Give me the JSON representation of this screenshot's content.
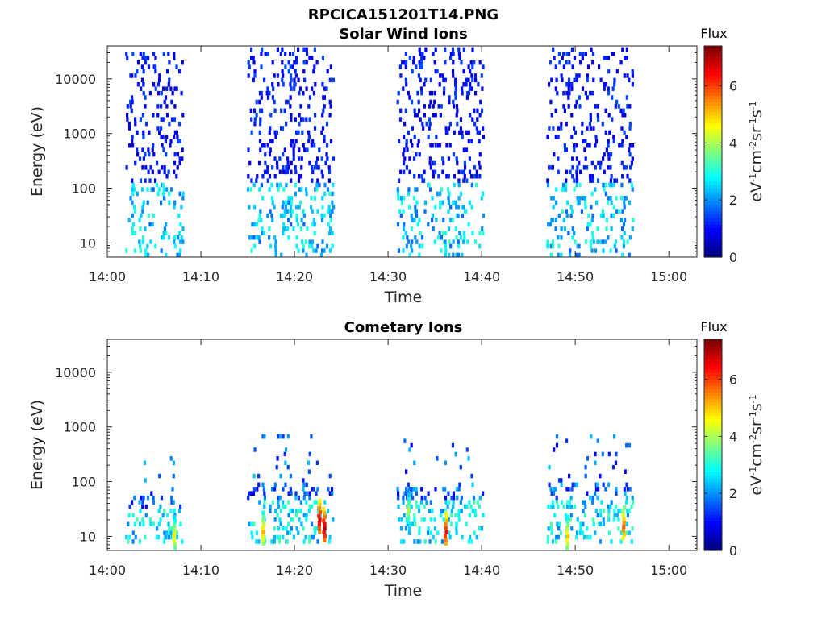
{
  "figure": {
    "title": "RPCICA151201T14.PNG"
  },
  "colorbar": {
    "label": "Flux",
    "unit": "eV-1cm-2sr-1s-1",
    "ticks": [
      "0",
      "2",
      "4",
      "6"
    ],
    "range": [
      0,
      7.4
    ],
    "colormap": "jet"
  },
  "chart_data": [
    {
      "type": "heatmap",
      "title": "Solar Wind Ions",
      "xlabel": "Time",
      "ylabel": "Energy (eV)",
      "x_range_minutes": [
        0,
        63
      ],
      "x_ticks": [
        "14:00",
        "14:10",
        "14:20",
        "14:30",
        "14:40",
        "14:50",
        "15:00"
      ],
      "y_scale": "log",
      "y_range": [
        5.5,
        40000
      ],
      "y_ticks": [
        "10",
        "100",
        "1000",
        "10000"
      ],
      "clim": [
        0,
        7.4
      ],
      "bursts": [
        {
          "start": "14:02",
          "end": "14:08",
          "emin": 6,
          "emax": 30000,
          "flux": 1.3
        },
        {
          "start": "14:15",
          "end": "14:24",
          "emin": 6,
          "emax": 38000,
          "flux": 1.5
        },
        {
          "start": "14:31",
          "end": "14:40",
          "emin": 6,
          "emax": 40000,
          "flux": 1.4
        },
        {
          "start": "14:47",
          "end": "14:56",
          "emin": 6,
          "emax": 38000,
          "flux": 1.4
        }
      ]
    },
    {
      "type": "heatmap",
      "title": "Cometary Ions",
      "xlabel": "Time",
      "ylabel": "Energy (eV)",
      "x_range_minutes": [
        0,
        63
      ],
      "x_ticks": [
        "14:00",
        "14:10",
        "14:20",
        "14:30",
        "14:40",
        "14:50",
        "15:00"
      ],
      "y_scale": "log",
      "y_range": [
        5.5,
        40000
      ],
      "y_ticks": [
        "10",
        "100",
        "1000",
        "10000"
      ],
      "clim": [
        0,
        7.4
      ],
      "bursts": [
        {
          "start": "14:02",
          "end": "14:08",
          "emin": 8,
          "emax": 300,
          "flux": 2.6
        },
        {
          "start": "14:15",
          "end": "14:24",
          "emin": 8,
          "emax": 800,
          "flux": 3.0
        },
        {
          "start": "14:31",
          "end": "14:40",
          "emin": 8,
          "emax": 600,
          "flux": 3.0
        },
        {
          "start": "14:47",
          "end": "14:56",
          "emin": 8,
          "emax": 700,
          "flux": 2.9
        }
      ],
      "hotspots": [
        {
          "time": "14:07",
          "energy": 10,
          "flux": 4.8
        },
        {
          "time": "14:16.5",
          "energy": 12,
          "flux": 5.2
        },
        {
          "time": "14:22.5",
          "energy": 20,
          "flux": 6.8
        },
        {
          "time": "14:23",
          "energy": 14,
          "flux": 7.0
        },
        {
          "time": "14:32",
          "energy": 30,
          "flux": 4.2
        },
        {
          "time": "14:36",
          "energy": 12,
          "flux": 6.5
        },
        {
          "time": "14:49",
          "energy": 10,
          "flux": 5.0
        },
        {
          "time": "14:55",
          "energy": 15,
          "flux": 5.8
        }
      ]
    }
  ]
}
